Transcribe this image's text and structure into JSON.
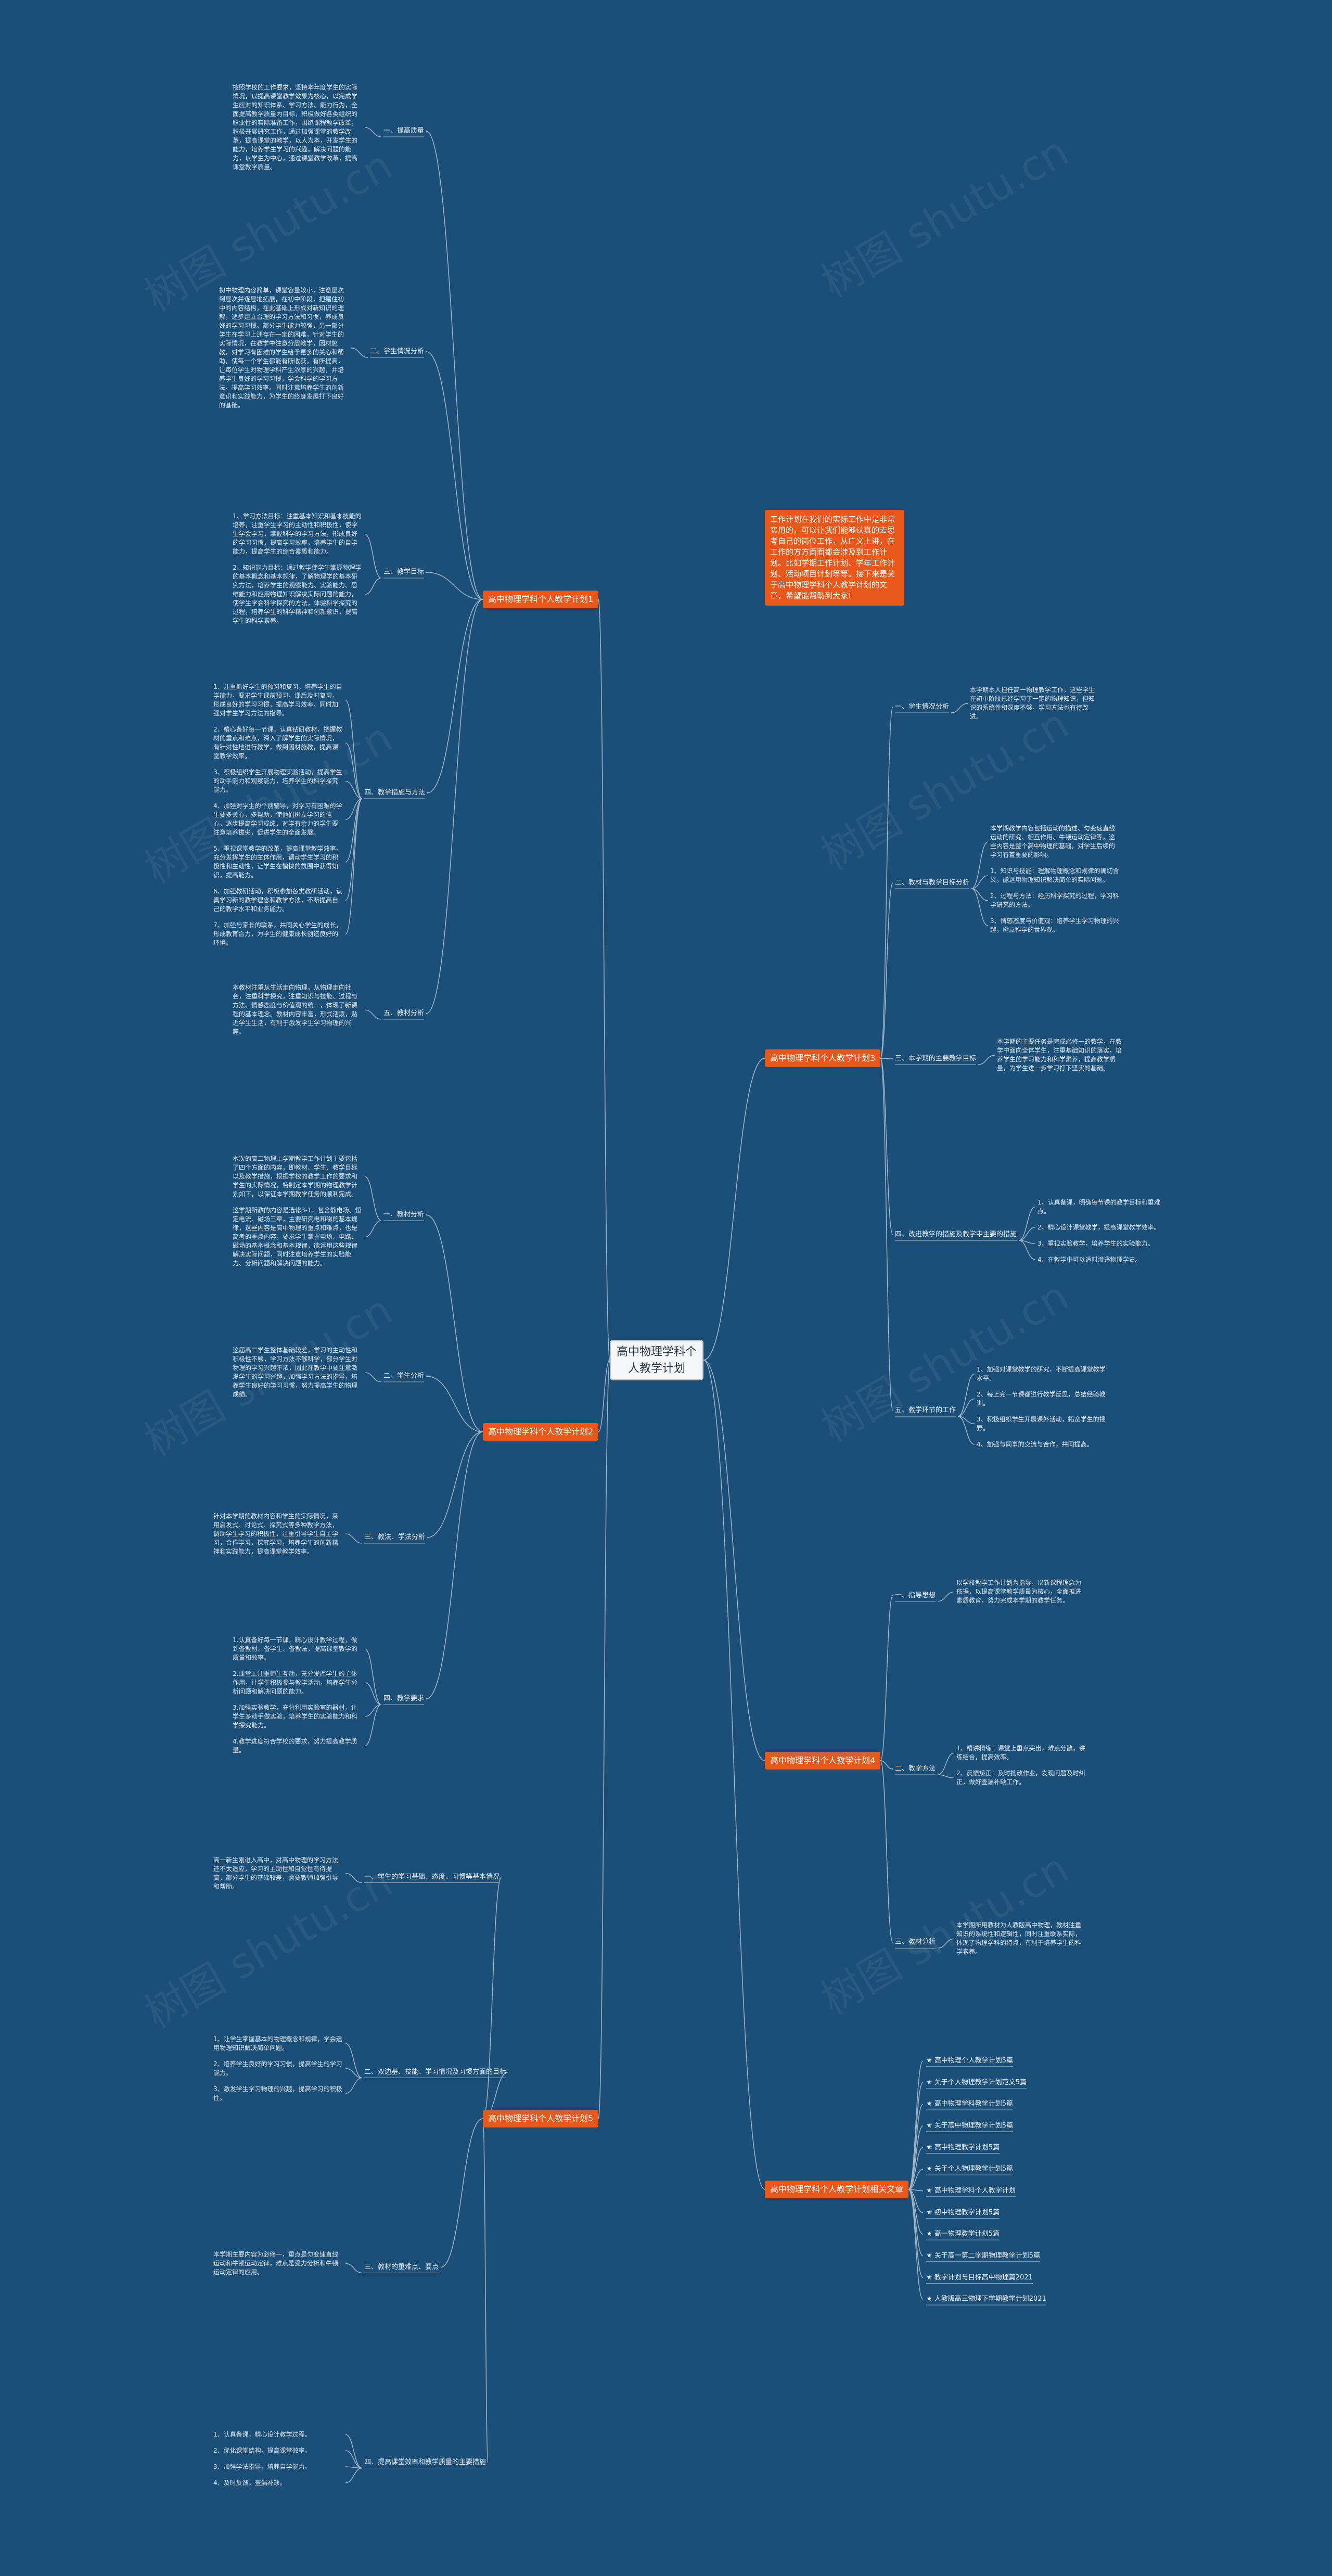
{
  "root": "高中物理学科个人教学计划",
  "intro": "工作计划在我们的实际工作中是非常实用的，可以让我们能够认真的去思考自己的岗位工作，从广义上讲，在工作的方方面面都会涉及到工作计划。比如学期工作计划、学年工作计划、活动项目计划等等。接下来是关于高中物理学科个人教学计划的文章，希望能帮助到大家!",
  "watermark": "树图 shutu.cn",
  "branches": [
    {
      "label": "高中物理学科个人教学计划1",
      "subs": [
        {
          "label": "一、提高质量",
          "leaves": [
            "按照学校的工作要求，坚持本年度学生的实际情况，以提高课堂教学效果为核心，以完成学生应对的知识体系、学习方法、能力行为，全面提高教学质量为目标，积极做好各类组织的职业性的实际准备工作，围绕课程教学改革，积极开展研究工作，通过加强课堂的教学改革，提高课堂的教学，以人为本，开发学生的能力，培养学生学习的兴趣，解决问题的能力，以学生为中心，通过课堂教学改革，提高课堂教学质量。"
          ]
        },
        {
          "label": "二、学生情况分析",
          "leaves": [
            "初中物理内容简单，课堂容量较小，注意层次到层次并逐层地拓展，在初中阶段，把握住初中的内容结构，在此基础上形成对新知识的理解，逐步建立合理的学习方法和习惯，养成良好的学习习惯。部分学生能力较强，另一部分学生在学习上还存在一定的困难，针对学生的实际情况，在教学中注意分层教学，因材施教，对学习有困难的学生给予更多的关心和帮助，使每一个学生都能有所收获，有所提高，让每位学生对物理学科产生浓厚的兴趣，并培养学生良好的学习习惯，学会科学的学习方法，提高学习效率。同时注意培养学生的创新意识和实践能力，为学生的终身发展打下良好的基础。"
          ]
        },
        {
          "label": "三、教学目标",
          "leaves": [
            "1、学习方法目标：注重基本知识和基本技能的培养，注重学生学习的主动性和积极性，使学生学会学习，掌握科学的学习方法，形成良好的学习习惯，提高学习效率，培养学生的自学能力，提高学生的综合素质和能力。",
            "2、知识能力目标：通过教学使学生掌握物理学的基本概念和基本规律，了解物理学的基本研究方法，培养学生的观察能力、实验能力、思维能力和应用物理知识解决实际问题的能力，使学生学会科学探究的方法，体验科学探究的过程，培养学生的科学精神和创新意识，提高学生的科学素养。"
          ]
        },
        {
          "label": "四、教学措施与方法",
          "leaves": [
            "1、注重抓好学生的预习和复习，培养学生的自学能力，要求学生课前预习，课后及时复习，形成良好的学习习惯，提高学习效率，同时加强对学生学习方法的指导。",
            "2、精心备好每一节课，认真钻研教材，把握教材的重点和难点，深入了解学生的实际情况，有针对性地进行教学，做到因材施教，提高课堂教学效率。",
            "3、积极组织学生开展物理实验活动，提高学生的动手能力和观察能力，培养学生的科学探究能力。",
            "4、加强对学生的个别辅导，对学习有困难的学生要多关心，多帮助，使他们树立学习的信心，逐步提高学习成绩，对学有余力的学生要注意培养拔尖，促进学生的全面发展。",
            "5、重视课堂教学的改革，提高课堂教学效率，充分发挥学生的主体作用，调动学生学习的积极性和主动性，让学生在愉快的氛围中获得知识，提高能力。",
            "6、加强教研活动，积极参加各类教研活动，认真学习新的教学理念和教学方法，不断提高自己的教学水平和业务能力。",
            "7、加强与家长的联系，共同关心学生的成长，形成教育合力，为学生的健康成长创造良好的环境。"
          ]
        },
        {
          "label": "五、教材分析",
          "leaves": [
            "本教材注重从生活走向物理，从物理走向社会，注重科学探究，注重知识与技能、过程与方法、情感态度与价值观的统一，体现了新课程的基本理念。教材内容丰富，形式活泼，贴近学生生活，有利于激发学生学习物理的兴趣。"
          ]
        }
      ]
    },
    {
      "label": "高中物理学科个人教学计划2",
      "subs": [
        {
          "label": "一、教材分析",
          "leaves": [
            "本次的高二物理上学期教学工作计划主要包括了四个方面的内容，即教材、学生、教学目标以及教学措施，根据学校的教学工作的要求和学生的实际情况，特制定本学期的物理教学计划如下，以保证本学期教学任务的顺利完成。",
            "这学期所教的内容是选修3-1，包含静电场、恒定电流、磁场三章，主要研究电和磁的基本规律，这些内容是高中物理的重点和难点，也是高考的重点内容，要求学生掌握电场、电路、磁场的基本概念和基本规律，能运用这些规律解决实际问题，同时注意培养学生的实验能力、分析问题和解决问题的能力。"
          ]
        },
        {
          "label": "二、学生分析",
          "leaves": [
            "这届高二学生整体基础较差，学习的主动性和积极性不够，学习方法不够科学，部分学生对物理的学习兴趣不浓，因此在教学中要注意激发学生的学习兴趣，加强学习方法的指导，培养学生良好的学习习惯，努力提高学生的物理成绩。"
          ]
        },
        {
          "label": "三、教法、学法分析",
          "leaves": [
            "针对本学期的教材内容和学生的实际情况，采用启发式、讨论式、探究式等多种教学方法，调动学生学习的积极性，注重引导学生自主学习，合作学习，探究学习，培养学生的创新精神和实践能力，提高课堂教学效率。"
          ]
        },
        {
          "label": "四、教学要求",
          "leaves": [
            "1.认真备好每一节课，精心设计教学过程，做到备教材、备学生、备教法，提高课堂教学的质量和效率。",
            "2.课堂上注重师生互动，充分发挥学生的主体作用，让学生积极参与教学活动，培养学生分析问题和解决问题的能力。",
            "3.加强实验教学，充分利用实验室的器材，让学生多动手做实验，培养学生的实验能力和科学探究能力。",
            "4.教学进度符合学校的要求，努力提高教学质量。"
          ]
        }
      ]
    },
    {
      "label": "高中物理学科个人教学计划3",
      "subs": [
        {
          "label": "一、学生情况分析",
          "leaves": [
            "本学期本人担任高一物理教学工作，这些学生在初中阶段已经学习了一定的物理知识，但知识的系统性和深度不够，学习方法也有待改进。"
          ]
        },
        {
          "label": "二、教材与教学目标分析",
          "leaves": [
            "本学期教学内容包括运动的描述、匀变速直线运动的研究、相互作用、牛顿运动定律等，这些内容是整个高中物理的基础，对学生后续的学习有着重要的影响。",
            "1、知识与技能：理解物理概念和规律的确切含义，能运用物理知识解决简单的实际问题。",
            "2、过程与方法：经历科学探究的过程，学习科学研究的方法。",
            "3、情感态度与价值观：培养学生学习物理的兴趣，树立科学的世界观。"
          ]
        },
        {
          "label": "三、本学期的主要教学目标",
          "leaves": [
            "本学期的主要任务是完成必修一的教学，在教学中面向全体学生，注重基础知识的落实，培养学生的学习能力和科学素养，提高教学质量，为学生进一步学习打下坚实的基础。"
          ]
        },
        {
          "label": "四、改进教学的措施及教学中主要的措施",
          "leaves": [
            "1、认真备课，明确每节课的教学目标和重难点。",
            "2、精心设计课堂教学，提高课堂教学效率。",
            "3、重视实验教学，培养学生的实验能力。",
            "4、在教学中可以适时渗透物理学史。"
          ]
        },
        {
          "label": "五、教学环节的工作",
          "leaves": [
            "1、加强对课堂教学的研究，不断提高课堂教学水平。",
            "2、每上完一节课都进行教学反思，总结经验教训。",
            "3、积极组织学生开展课外活动，拓宽学生的视野。",
            "4、加强与同事的交流与合作，共同提高。"
          ]
        }
      ]
    },
    {
      "label": "高中物理学科个人教学计划4",
      "subs": [
        {
          "label": "一、指导思想",
          "leaves": [
            "以学校教学工作计划为指导，以新课程理念为依据，以提高课堂教学质量为核心，全面推进素质教育，努力完成本学期的教学任务。"
          ]
        },
        {
          "label": "二、教学方法",
          "leaves": [
            "1、精讲精练：课堂上重点突出，难点分散，讲练结合，提高效率。",
            "2、反馈矫正：及时批改作业，发现问题及时纠正，做好查漏补缺工作。"
          ]
        },
        {
          "label": "三、教材分析",
          "leaves": [
            "本学期所用教材为人教版高中物理，教材注重知识的系统性和逻辑性，同时注重联系实际，体现了物理学科的特点，有利于培养学生的科学素养。"
          ]
        }
      ]
    },
    {
      "label": "高中物理学科个人教学计划5",
      "subs": [
        {
          "label": "一、学生的学习基础、态度、习惯等基本情况",
          "leaves": [
            "高一新生刚进入高中，对高中物理的学习方法还不太适应，学习的主动性和自觉性有待提高，部分学生的基础较差，需要教师加强引导和帮助。"
          ]
        },
        {
          "label": "二、双边基、技能、学习情况及习惯方面的目标",
          "leaves": [
            "1、让学生掌握基本的物理概念和规律，学会运用物理知识解决简单问题。",
            "2、培养学生良好的学习习惯，提高学生的学习能力。",
            "3、激发学生学习物理的兴趣，提高学习的积极性。"
          ]
        },
        {
          "label": "三、教材的重难点、要点",
          "leaves": [
            "本学期主要内容为必修一，重点是匀变速直线运动和牛顿运动定律，难点是受力分析和牛顿运动定律的应用。"
          ]
        },
        {
          "label": "四、提高课堂效率和教学质量的主要措施",
          "leaves": [
            "1、认真备课，精心设计教学过程。",
            "2、优化课堂结构，提高课堂效率。",
            "3、加强学法指导，培养自学能力。",
            "4、及时反馈，查漏补缺。"
          ]
        }
      ]
    },
    {
      "label": "高中物理学科个人教学计划相关文章",
      "subs": [],
      "links": [
        "★ 高中物理个人教学计划5篇",
        "★ 关于个人物理教学计划范文5篇",
        "★ 高中物理学科教学计划5篇",
        "★ 关于高中物理教学计划5篇",
        "★ 高中物理教学计划5篇",
        "★ 关于个人物理教学计划5篇",
        "★ 高中物理学科个人教学计划",
        "★ 初中物理教学计划5篇",
        "★ 高一物理教学计划5篇",
        "★ 关于高一第二学期物理教学计划5篇",
        "★ 教学计划与目标高中物理篇2021",
        "★ 人教版高三物理下学期教学计划2021"
      ]
    }
  ]
}
